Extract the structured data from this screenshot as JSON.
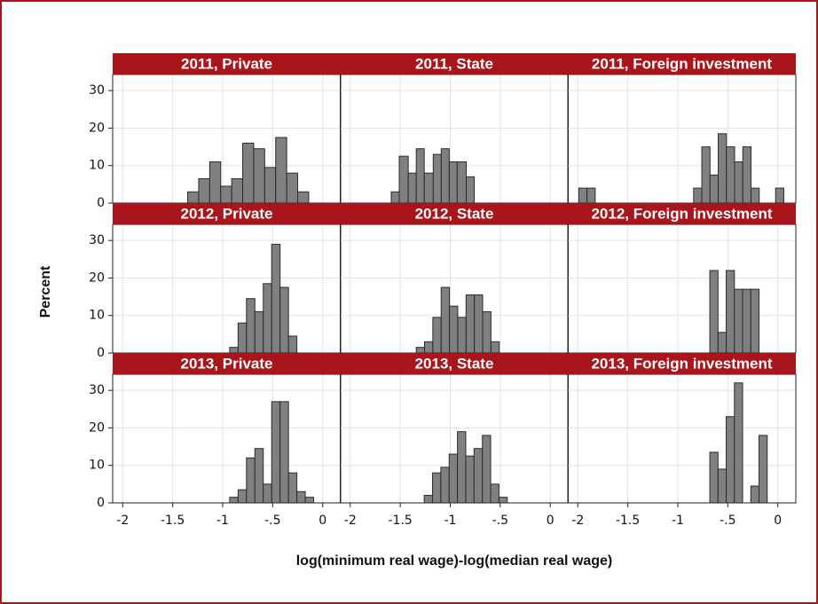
{
  "chart_data": {
    "type": "histogram",
    "xlabel": "log(minimum real wage)-log(median real wage)",
    "ylabel": "Percent",
    "xlim": [
      -2.1,
      0.18
    ],
    "ylim": [
      0,
      34.3
    ],
    "xticks": [
      -2,
      -1.5,
      -1,
      {
        "value": -0.5,
        "label": "-.5"
      },
      0
    ],
    "yticks": [
      0,
      10,
      20,
      30
    ],
    "grid": true,
    "color": "#808080",
    "panels": [
      {
        "title": "2011, Private",
        "bins": [
          -1.35,
          -1.24,
          -1.13,
          -1.02,
          -0.91,
          -0.8,
          -0.69,
          -0.58,
          -0.47,
          -0.36,
          -0.25,
          -0.14
        ],
        "values": [
          3,
          6.5,
          11,
          4.5,
          6.5,
          16,
          14.5,
          9.5,
          17.5,
          8,
          3
        ]
      },
      {
        "title": "2011, State",
        "bins": [
          -1.59,
          -1.51,
          -1.42,
          -1.34,
          -1.26,
          -1.17,
          -1.09,
          -1.01,
          -0.93,
          -0.84,
          -0.76
        ],
        "values": [
          3,
          12.5,
          8,
          14.5,
          8,
          13,
          14.5,
          11,
          11,
          7
        ]
      },
      {
        "title": "2011, Foreign investment",
        "bins": [
          -1.99,
          -1.908,
          -1.826,
          -1.744,
          -1.662,
          -1.58,
          -1.498,
          -1.416,
          -1.334,
          -1.252,
          -1.17,
          -1.088,
          -1.006,
          -0.924,
          -0.842,
          -0.76,
          -0.678,
          -0.596,
          -0.514,
          -0.432,
          -0.35,
          -0.268,
          -0.186,
          -0.104,
          -0.022,
          0.06
        ],
        "values": [
          4,
          4,
          0,
          0,
          0,
          0,
          0,
          0,
          0,
          0,
          0,
          0,
          0,
          0,
          4,
          15,
          7.5,
          18.5,
          15,
          11,
          15,
          4,
          0,
          0,
          4
        ]
      },
      {
        "title": "2012, Private",
        "bins": [
          -0.93,
          -0.846,
          -0.762,
          -0.678,
          -0.594,
          -0.51,
          -0.426,
          -0.342,
          -0.258
        ],
        "values": [
          1.5,
          8,
          14.5,
          11,
          18.5,
          29,
          17.5,
          4.5
        ]
      },
      {
        "title": "2012, State",
        "bins": [
          -1.34,
          -1.257,
          -1.174,
          -1.091,
          -1.008,
          -0.925,
          -0.842,
          -0.759,
          -0.676,
          -0.593,
          -0.51
        ],
        "values": [
          1.5,
          3,
          9.5,
          17.5,
          12.5,
          9.5,
          15.5,
          15.5,
          11,
          3
        ]
      },
      {
        "title": "2012, Foreign investment",
        "bins": [
          -0.68,
          -0.598,
          -0.516,
          -0.434,
          -0.352,
          -0.27,
          -0.188
        ],
        "values": [
          22,
          5.5,
          22,
          17,
          17,
          17
        ]
      },
      {
        "title": "2013, Private",
        "bins": [
          -0.93,
          -0.846,
          -0.762,
          -0.678,
          -0.594,
          -0.51,
          -0.426,
          -0.342,
          -0.258,
          -0.174,
          -0.09
        ],
        "values": [
          1.5,
          3.5,
          12,
          14.5,
          5,
          27,
          27,
          8,
          3,
          1.5
        ]
      },
      {
        "title": "2013, State",
        "bins": [
          -1.26,
          -1.177,
          -1.094,
          -1.011,
          -0.928,
          -0.845,
          -0.762,
          -0.679,
          -0.596,
          -0.513,
          -0.43
        ],
        "values": [
          2,
          8,
          9.5,
          13,
          19,
          12.5,
          14.5,
          18,
          5,
          1.5
        ]
      },
      {
        "title": "2013, Foreign investment",
        "bins": [
          -0.68,
          -0.598,
          -0.516,
          -0.434,
          -0.352,
          -0.27,
          -0.188,
          -0.106
        ],
        "values": [
          13.5,
          9,
          23,
          32,
          0,
          4.5,
          18
        ]
      }
    ]
  }
}
